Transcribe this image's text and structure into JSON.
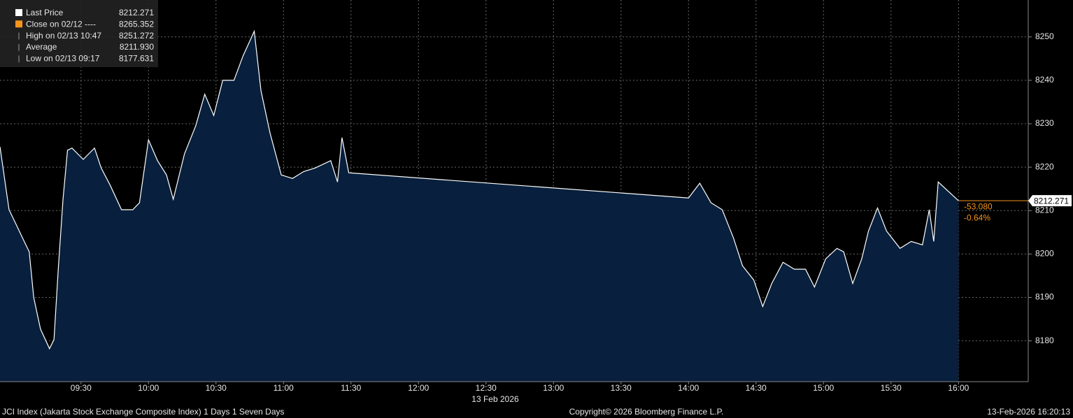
{
  "chart_data": {
    "type": "area",
    "x": [
      "08:54",
      "08:58",
      "09:01",
      "09:04",
      "09:07",
      "09:09",
      "09:12",
      "09:16",
      "09:18",
      "09:20",
      "09:22",
      "09:24",
      "09:26",
      "09:31",
      "09:36",
      "09:39",
      "09:43",
      "09:48",
      "09:53",
      "09:56",
      "10:00",
      "10:04",
      "10:08",
      "10:11",
      "10:16",
      "10:21",
      "10:25",
      "10:29",
      "10:33",
      "10:38",
      "10:42",
      "10:47",
      "10:50",
      "10:54",
      "10:59",
      "11:04",
      "11:09",
      "11:14",
      "11:21",
      "11:24",
      "11:26",
      "11:29",
      "14:00",
      "14:05",
      "14:10",
      "14:15",
      "14:20",
      "14:24",
      "14:29",
      "14:33",
      "14:37",
      "14:42",
      "14:47",
      "14:52",
      "14:56",
      "15:01",
      "15:06",
      "15:09",
      "15:13",
      "15:17",
      "15:20",
      "15:24",
      "15:28",
      "15:34",
      "15:39",
      "15:44",
      "15:47",
      "15:49",
      "15:51",
      "16:00"
    ],
    "series": [
      {
        "name": "Last Price",
        "color": "#ffffff",
        "fill": "#08203d",
        "values": [
          8224.7,
          8210.2,
          8207,
          8203.7,
          8200.5,
          8190,
          8182.7,
          8178.2,
          8180.3,
          8197.3,
          8212.6,
          8223.9,
          8224.4,
          8221.8,
          8224.4,
          8219.8,
          8215.8,
          8210.2,
          8210.2,
          8211.8,
          8226.3,
          8221.5,
          8218.2,
          8212.6,
          8223.1,
          8229.5,
          8236.8,
          8231.9,
          8240,
          8240,
          8245.6,
          8251.3,
          8237.6,
          8227.9,
          8218.2,
          8217.4,
          8219,
          8219.8,
          8221.5,
          8216.6,
          8226.8,
          8218.7,
          8212.9,
          8216.3,
          8211.8,
          8210.2,
          8203.7,
          8197.3,
          8194,
          8187.9,
          8193.2,
          8198.1,
          8196.5,
          8196.5,
          8192.4,
          8198.9,
          8201.3,
          8200.5,
          8193.2,
          8198.9,
          8205.3,
          8210.6,
          8205.3,
          8201.3,
          8202.9,
          8202.1,
          8210.2,
          8202.9,
          8216.6,
          8212.271
        ]
      }
    ],
    "xlim": [
      "08:54",
      "16:31"
    ],
    "xticks": [
      "09:30",
      "10:00",
      "10:30",
      "11:00",
      "11:30",
      "12:00",
      "12:30",
      "13:00",
      "13:30",
      "14:00",
      "14:30",
      "15:00",
      "15:30",
      "16:00"
    ],
    "x_date_label": "13 Feb 2026",
    "ylim": [
      8170.6,
      8258.5
    ],
    "yticks": [
      8180,
      8190,
      8200,
      8210,
      8220,
      8230,
      8240,
      8250
    ],
    "grid": true,
    "legend": [
      {
        "label": "Last Price",
        "color": "#ffffff",
        "value": {
          "value": 8212.271,
          "label": "8212.271"
        }
      },
      {
        "label": "Close on 02/12 ----",
        "color": "#f7941d",
        "value": {
          "value": 8265.352,
          "label": "8265.352"
        }
      },
      {
        "label": "High on 02/13 10:47",
        "value": {
          "value": 8251.272,
          "label": "8251.272"
        }
      },
      {
        "label": "Average",
        "value": {
          "value": 8211.93,
          "label": "8211.930"
        }
      },
      {
        "label": "Low on 02/13 09:17",
        "value": {
          "value": 8177.631,
          "label": "8177.631"
        }
      }
    ],
    "last_price": {
      "value": 8212.271,
      "label": "8212.271",
      "color": "#f7941d"
    },
    "change": {
      "value": -53.08,
      "label": "-53.080"
    },
    "change_pct": {
      "value": -0.64,
      "label": "-0.64%"
    },
    "footer_left": "JCI Index (Jakarta Stock Exchange Composite Index) 1 Days 1 Seven Days",
    "footer_center": "Copyright© 2026 Bloomberg Finance L.P.",
    "footer_right": "13-Feb-2026 16:20:13"
  }
}
